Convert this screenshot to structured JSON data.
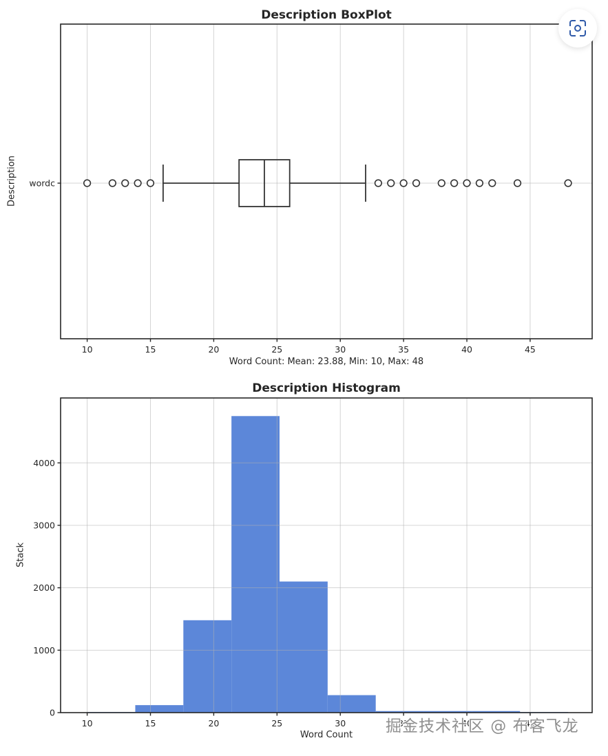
{
  "colors": {
    "bar": "#5c87d9",
    "box_stroke": "#333333",
    "grid": "#b0b0b0",
    "axis": "#262626",
    "text": "#262626",
    "icon_blue": "#2e59a8",
    "watermark": "#8f8f8f",
    "background": "#ffffff"
  },
  "watermark": {
    "text": "掘金技术社区 @ 布客飞龙"
  },
  "scan_button": {
    "icon": "scan-viewfinder-icon"
  },
  "chart_data": [
    {
      "type": "boxplot",
      "title": "Description BoxPlot",
      "xlabel": "Word Count: Mean: 23.88, Min: 10, Max: 48",
      "ylabel": "Description",
      "category": "wordc",
      "orientation": "horizontal",
      "xlim": [
        7.9,
        49.9
      ],
      "xticks": [
        10,
        15,
        20,
        25,
        30,
        35,
        40,
        45
      ],
      "grid": true,
      "stats": {
        "mean": 23.88,
        "min": 10,
        "max": 48,
        "whisker_low": 16,
        "q1": 22,
        "median": 24,
        "q3": 26,
        "whisker_high": 32
      },
      "outliers_low": [
        10,
        12,
        13,
        14,
        15
      ],
      "outliers_high": [
        33,
        34,
        35,
        36,
        38,
        39,
        40,
        41,
        42,
        44,
        48
      ]
    },
    {
      "type": "histogram",
      "title": "Description Histogram",
      "xlabel": "Word Count",
      "ylabel": "Stack",
      "xlim": [
        7.9,
        49.9
      ],
      "ylim": [
        0,
        5040
      ],
      "xticks": [
        10,
        15,
        20,
        25,
        30,
        35,
        40,
        45
      ],
      "yticks": [
        0,
        1000,
        2000,
        3000,
        4000
      ],
      "grid": true,
      "bin_edges": [
        10,
        13.8,
        17.6,
        21.4,
        25.2,
        29,
        32.8,
        36.6,
        40.4,
        44.2,
        48
      ],
      "counts": [
        10,
        120,
        1480,
        4750,
        2100,
        280,
        25,
        25,
        25,
        10
      ]
    }
  ]
}
